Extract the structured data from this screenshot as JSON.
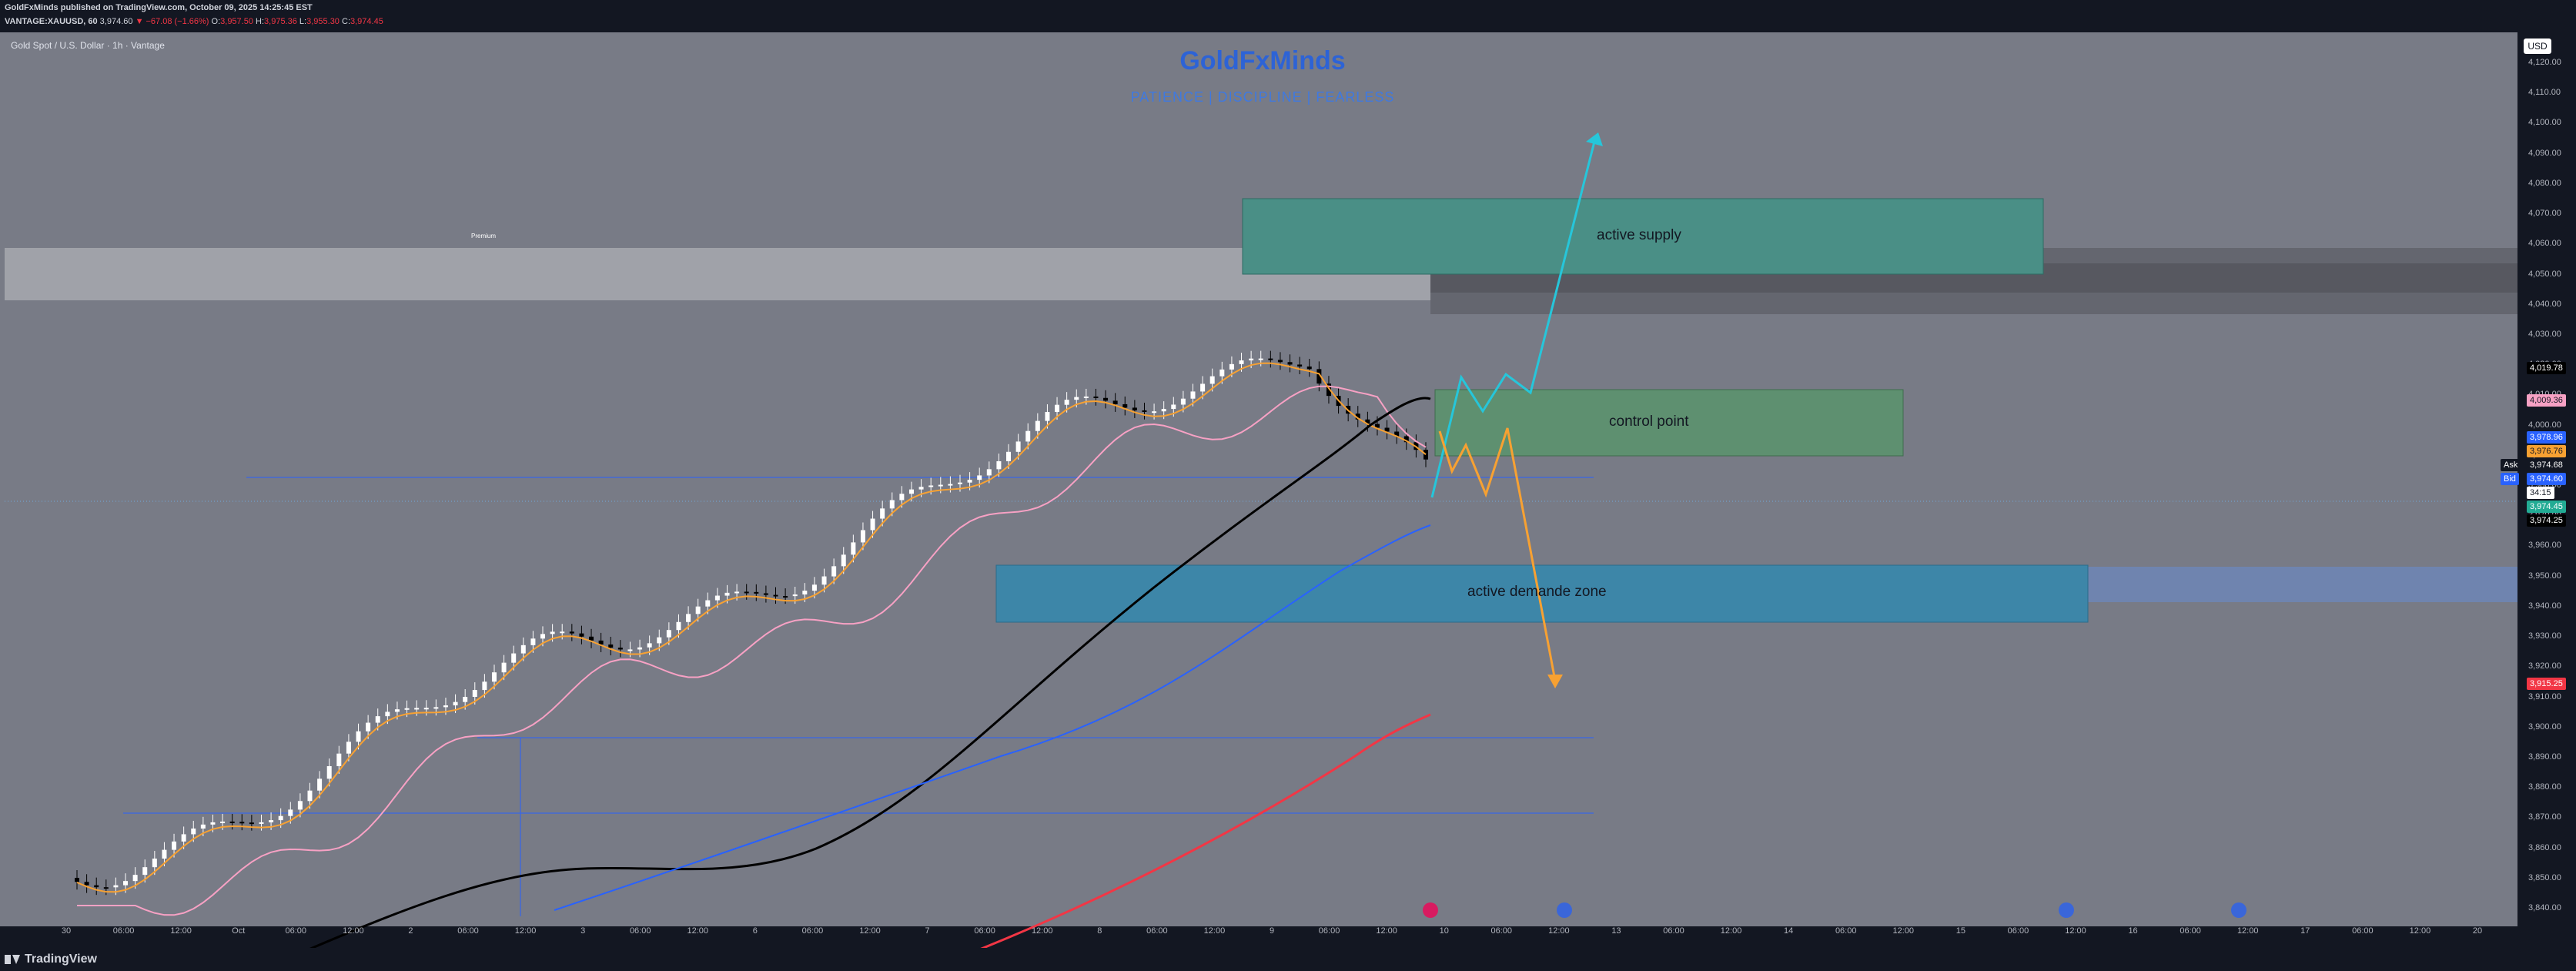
{
  "header": {
    "line1": "GoldFxMinds published on TradingView.com, October 09, 2025 14:25:45 EST",
    "symbol": "VANTAGE:XAUUSD, 60",
    "price": "3,974.60",
    "change": "▼ −67.08 (−1.66%)",
    "o_label": "O:",
    "o": "3,957.50",
    "h_label": "H:",
    "h": "3,975.36",
    "l_label": "L:",
    "l": "3,955.30",
    "c_label": "C:",
    "c": "3,974.45"
  },
  "chart": {
    "symbol_title": "Gold Spot / U.S. Dollar · 1h · Vantage",
    "currency": "USD",
    "watermark_title": "GoldFxMinds",
    "watermark_tagline": "PATIENCE  |  DISCIPLINE  |  FEARLESS",
    "zones": {
      "supply": "active supply",
      "control": "control point",
      "demand": "active demande zone",
      "premium": "Premium"
    },
    "price_labels": [
      {
        "value": "4,019.78",
        "bg": "#000000",
        "fg": "#ffffff"
      },
      {
        "value": "4,009.36",
        "bg": "#f7a1c4",
        "fg": "#131722"
      },
      {
        "value": "3,978.96",
        "bg": "#2962ff",
        "fg": "#ffffff"
      },
      {
        "value": "3,976.76",
        "bg": "#f7a132",
        "fg": "#131722"
      },
      {
        "value": "3,974.68",
        "bg": "#131722",
        "fg": "#ffffff",
        "tag": "Ask"
      },
      {
        "value": "3,974.60",
        "bg": "#2962ff",
        "fg": "#ffffff",
        "tag": "Bid"
      },
      {
        "value": "34:15",
        "bg": "#ffffff",
        "fg": "#131722"
      },
      {
        "value": "3,974.45",
        "bg": "#22ab94",
        "fg": "#ffffff"
      },
      {
        "value": "3,974.25",
        "bg": "#000000",
        "fg": "#ffffff"
      },
      {
        "value": "3,915.25",
        "bg": "#f23645",
        "fg": "#ffffff"
      }
    ],
    "y_ticks": [
      "4,120.00",
      "4,110.00",
      "4,100.00",
      "4,090.00",
      "4,080.00",
      "4,070.00",
      "4,060.00",
      "4,050.00",
      "4,040.00",
      "4,030.00",
      "4,020.00",
      "4,010.00",
      "4,000.00",
      "3,990.00",
      "3,980.00",
      "3,970.00",
      "3,960.00",
      "3,950.00",
      "3,940.00",
      "3,930.00",
      "3,920.00",
      "3,910.00",
      "3,900.00",
      "3,890.00",
      "3,880.00",
      "3,870.00",
      "3,860.00",
      "3,850.00",
      "3,840.00"
    ],
    "x_ticks": [
      "30",
      "06:00",
      "12:00",
      "Oct",
      "06:00",
      "12:00",
      "2",
      "06:00",
      "12:00",
      "3",
      "06:00",
      "12:00",
      "6",
      "06:00",
      "12:00",
      "7",
      "06:00",
      "12:00",
      "8",
      "06:00",
      "12:00",
      "9",
      "06:00",
      "12:00",
      "10",
      "06:00",
      "12:00",
      "13",
      "06:00",
      "12:00",
      "14",
      "06:00",
      "12:00",
      "15",
      "06:00",
      "12:00",
      "16",
      "06:00",
      "12:00",
      "17",
      "06:00",
      "12:00",
      "20"
    ],
    "colors": {
      "background": "#787b86",
      "supply_zone": "#4a8f86",
      "control_zone": "#5e9070",
      "demand_zone": "#3d86a8",
      "premium_band": "#a7a9af",
      "ema_black": "#000000",
      "ema_pink": "#f7a1c4",
      "ema_orange": "#f7a132",
      "ema_blue": "#2962ff",
      "ema_red": "#f23645",
      "projection_cyan": "#26c6da",
      "projection_orange": "#f7a132"
    }
  },
  "footer": {
    "brand": "TradingView"
  }
}
